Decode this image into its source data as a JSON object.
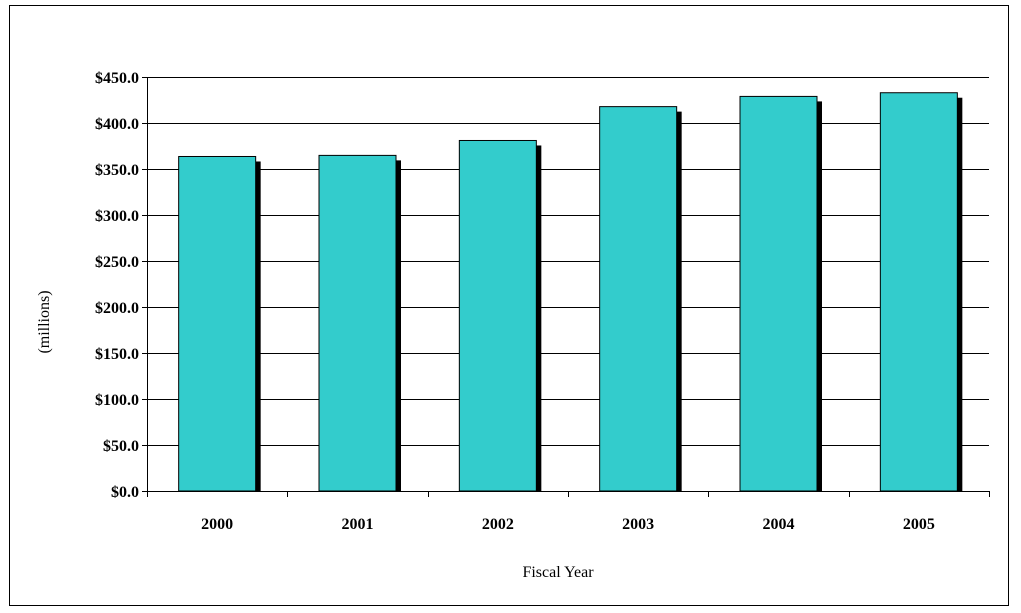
{
  "chart_data": {
    "type": "bar",
    "title": "",
    "xlabel": "Fiscal Year",
    "ylabel": "(millions)",
    "categories": [
      "2000",
      "2001",
      "2002",
      "2003",
      "2004",
      "2005"
    ],
    "values": [
      363.6,
      364.8,
      381.0,
      417.8,
      428.9,
      432.9
    ],
    "ylim": [
      0,
      450
    ],
    "yticks": [
      0,
      50,
      100,
      150,
      200,
      250,
      300,
      350,
      400,
      450
    ],
    "ytick_labels": [
      "$0.0",
      "$50.0",
      "$100.0",
      "$150.0",
      "$200.0",
      "$250.0",
      "$300.0",
      "$350.0",
      "$400.0",
      "$450.0"
    ],
    "grid": true,
    "legend": "none",
    "colors": {
      "bar": "#33CCCC",
      "bar_shadow": "#000000",
      "gridline": "#000000"
    }
  }
}
